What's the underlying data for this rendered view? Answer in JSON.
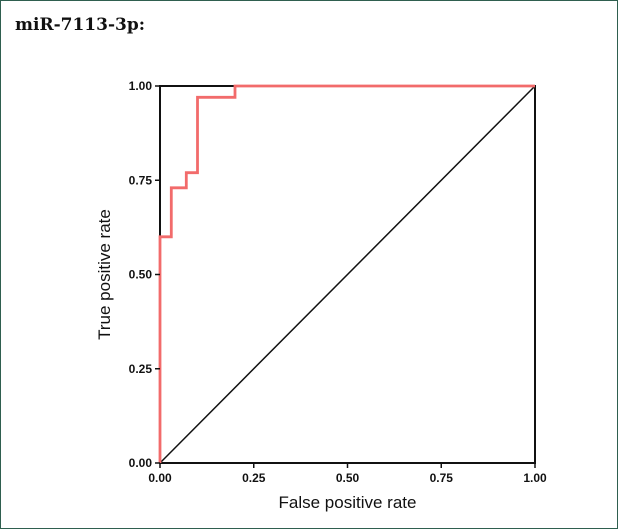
{
  "panel": {
    "title": "miR-7113-3p:"
  },
  "chart_data": {
    "type": "line",
    "title": "",
    "xlabel": "False positive rate",
    "ylabel": "True positive rate",
    "xlim": [
      0,
      1
    ],
    "ylim": [
      0,
      1
    ],
    "x_ticks": [
      "0.00",
      "0.25",
      "0.50",
      "0.75",
      "1.00"
    ],
    "y_ticks": [
      "0.00",
      "0.25",
      "0.50",
      "0.75",
      "1.00"
    ],
    "grid": false,
    "colors": {
      "roc": "#f26b6b",
      "reference": "#111111"
    },
    "series": [
      {
        "type": "step",
        "x": [
          0.0,
          0.0,
          0.0,
          0.0,
          0.0,
          0.0,
          0.03,
          0.03,
          0.07,
          0.07,
          0.1,
          0.1,
          0.2,
          0.2,
          1.0
        ],
        "y": [
          0.0,
          0.03,
          0.07,
          0.1,
          0.5,
          0.6,
          0.6,
          0.73,
          0.73,
          0.77,
          0.77,
          0.97,
          0.97,
          1.0,
          1.0
        ]
      },
      {
        "type": "reference",
        "x": [
          0,
          1
        ],
        "y": [
          0,
          1
        ]
      }
    ]
  }
}
